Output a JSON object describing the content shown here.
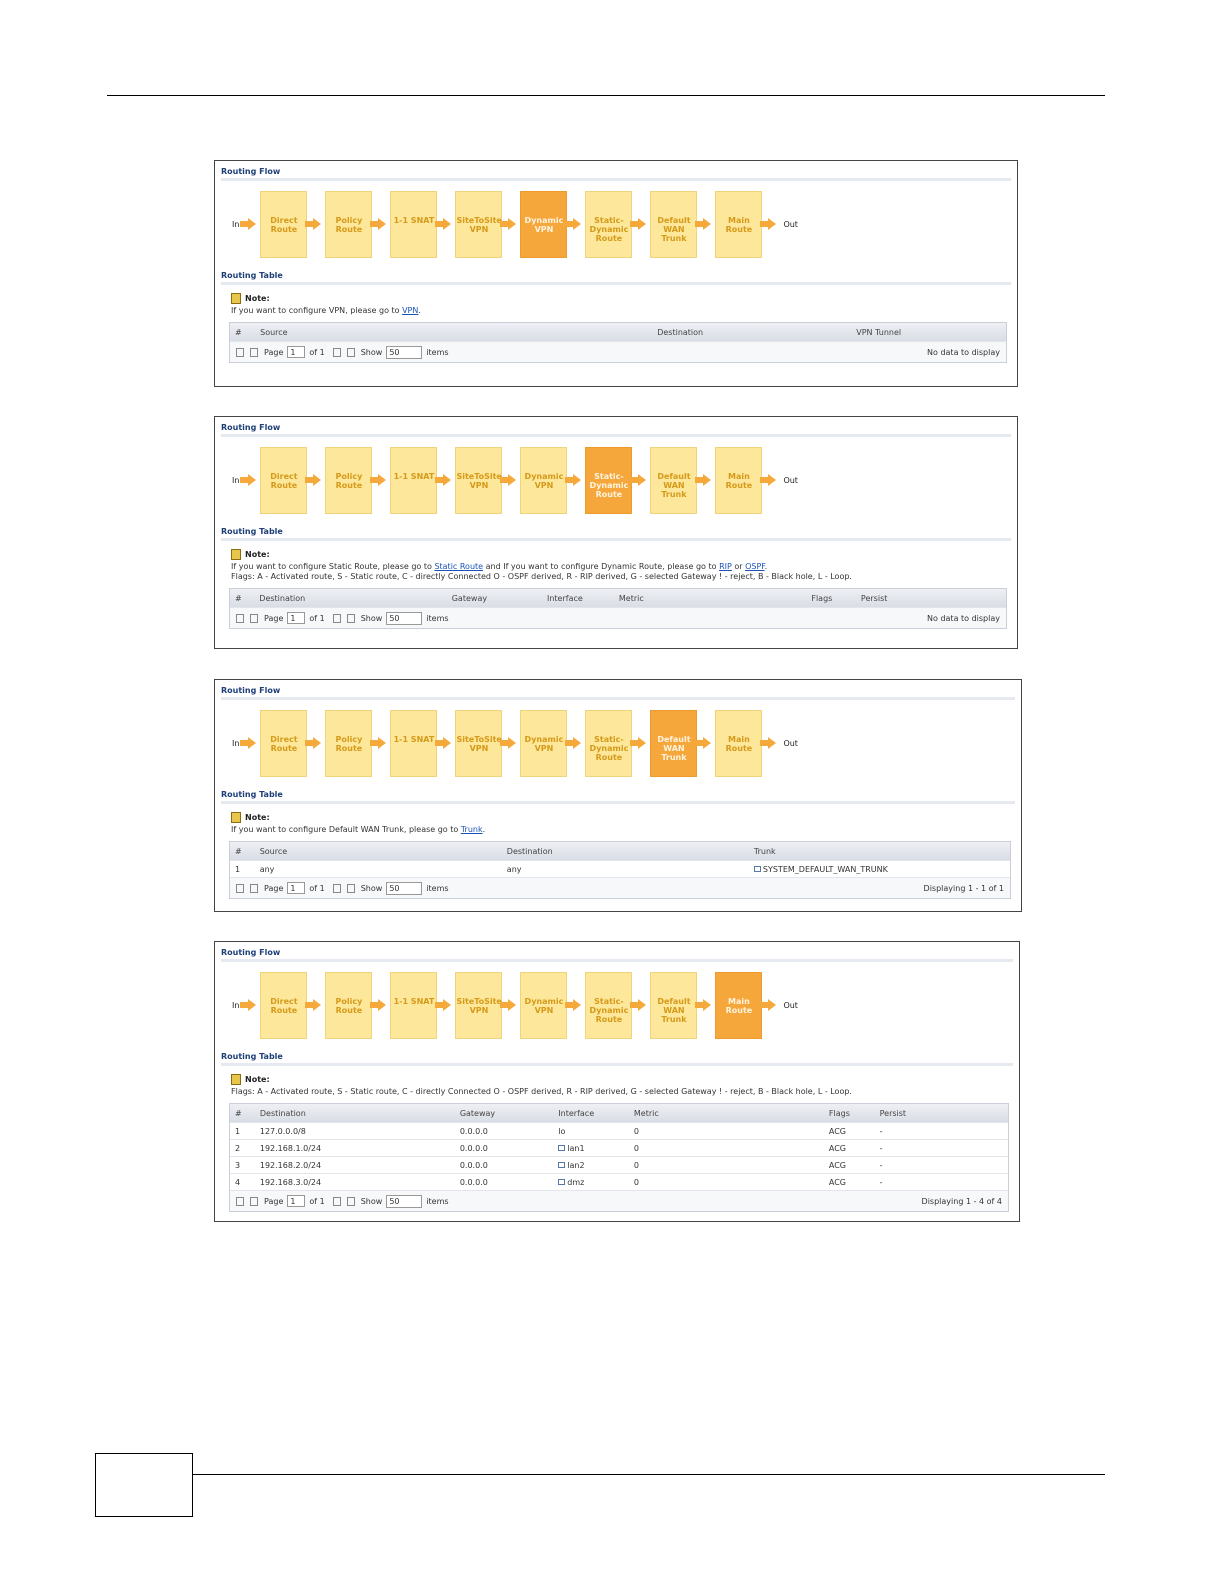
{
  "panels": [
    {
      "flow_title": "Routing Flow",
      "in": "In",
      "out": "Out",
      "steps": [
        "Direct Route",
        "Policy Route",
        "1-1 SNAT",
        "SiteToSite VPN",
        "Dynamic VPN",
        "Static-Dynamic Route",
        "Default WAN Trunk",
        "Main Route"
      ],
      "active": 4,
      "table_title": "Routing Table",
      "note_label": "Note:",
      "note_lines": [
        [
          {
            "text": "If you want to configure VPN, please go to "
          },
          {
            "link": "VPN"
          },
          {
            "text": "."
          }
        ]
      ],
      "columns": [
        "#",
        "Source",
        "Destination",
        "VPN Tunnel"
      ],
      "rows": [],
      "pager": {
        "page_label": "Page",
        "page": "1",
        "of_pages": "of 1",
        "show_label": "Show",
        "show": "50",
        "items_label": "items",
        "status": "No data to display"
      }
    },
    {
      "flow_title": "Routing Flow",
      "in": "In",
      "out": "Out",
      "steps": [
        "Direct Route",
        "Policy Route",
        "1-1 SNAT",
        "SiteToSite VPN",
        "Dynamic VPN",
        "Static-Dynamic Route",
        "Default WAN Trunk",
        "Main Route"
      ],
      "active": 5,
      "table_title": "Routing Table",
      "note_label": "Note:",
      "note_lines": [
        [
          {
            "text": "If you want to configure Static Route, please go to "
          },
          {
            "link": "Static Route"
          },
          {
            "text": " and If you want to configure Dynamic Route, please go to "
          },
          {
            "link": "RIP"
          },
          {
            "text": " or "
          },
          {
            "link": "OSPF"
          },
          {
            "text": "."
          }
        ],
        [
          {
            "text": "Flags: A - Activated route, S - Static route, C - directly Connected O - OSPF derived, R - RIP derived, G - selected Gateway ! - reject, B - Black hole, L - Loop."
          }
        ]
      ],
      "columns": [
        "#",
        "Destination",
        "Gateway",
        "Interface",
        "Metric",
        "Flags",
        "Persist"
      ],
      "rows": [],
      "pager": {
        "page_label": "Page",
        "page": "1",
        "of_pages": "of 1",
        "show_label": "Show",
        "show": "50",
        "items_label": "items",
        "status": "No data to display"
      }
    },
    {
      "flow_title": "Routing Flow",
      "in": "In",
      "out": "Out",
      "steps": [
        "Direct Route",
        "Policy Route",
        "1-1 SNAT",
        "SiteToSite VPN",
        "Dynamic VPN",
        "Static-Dynamic Route",
        "Default WAN Trunk",
        "Main Route"
      ],
      "active": 6,
      "table_title": "Routing Table",
      "note_label": "Note:",
      "note_lines": [
        [
          {
            "text": "If you want to configure Default WAN Trunk, please go to "
          },
          {
            "link": "Trunk"
          },
          {
            "text": "."
          }
        ]
      ],
      "columns": [
        "#",
        "Source",
        "Destination",
        "Trunk"
      ],
      "rows": [
        [
          "1",
          "any",
          "any",
          "SYSTEM_DEFAULT_WAN_TRUNK"
        ]
      ],
      "pager": {
        "page_label": "Page",
        "page": "1",
        "of_pages": "of 1",
        "show_label": "Show",
        "show": "50",
        "items_label": "items",
        "status": "Displaying 1 - 1 of 1"
      }
    },
    {
      "flow_title": "Routing Flow",
      "in": "In",
      "out": "Out",
      "steps": [
        "Direct Route",
        "Policy Route",
        "1-1 SNAT",
        "SiteToSite VPN",
        "Dynamic VPN",
        "Static-Dynamic Route",
        "Default WAN Trunk",
        "Main Route"
      ],
      "active": 7,
      "table_title": "Routing Table",
      "note_label": "Note:",
      "note_lines": [
        [
          {
            "text": "Flags: A - Activated route, S - Static route, C - directly Connected O - OSPF derived, R - RIP derived, G - selected Gateway ! - reject, B - Black hole, L - Loop."
          }
        ]
      ],
      "columns": [
        "#",
        "Destination",
        "Gateway",
        "Interface",
        "Metric",
        "Flags",
        "Persist"
      ],
      "rows": [
        [
          "1",
          "127.0.0.0/8",
          "0.0.0.0",
          "lo",
          "0",
          "ACG",
          "-"
        ],
        [
          "2",
          "192.168.1.0/24",
          "0.0.0.0",
          "lan1",
          "0",
          "ACG",
          "-"
        ],
        [
          "3",
          "192.168.2.0/24",
          "0.0.0.0",
          "lan2",
          "0",
          "ACG",
          "-"
        ],
        [
          "4",
          "192.168.3.0/24",
          "0.0.0.0",
          "dmz",
          "0",
          "ACG",
          "-"
        ]
      ],
      "pager": {
        "page_label": "Page",
        "page": "1",
        "of_pages": "of 1",
        "show_label": "Show",
        "show": "50",
        "items_label": "items",
        "status": "Displaying 1 - 4 of 4"
      }
    }
  ]
}
